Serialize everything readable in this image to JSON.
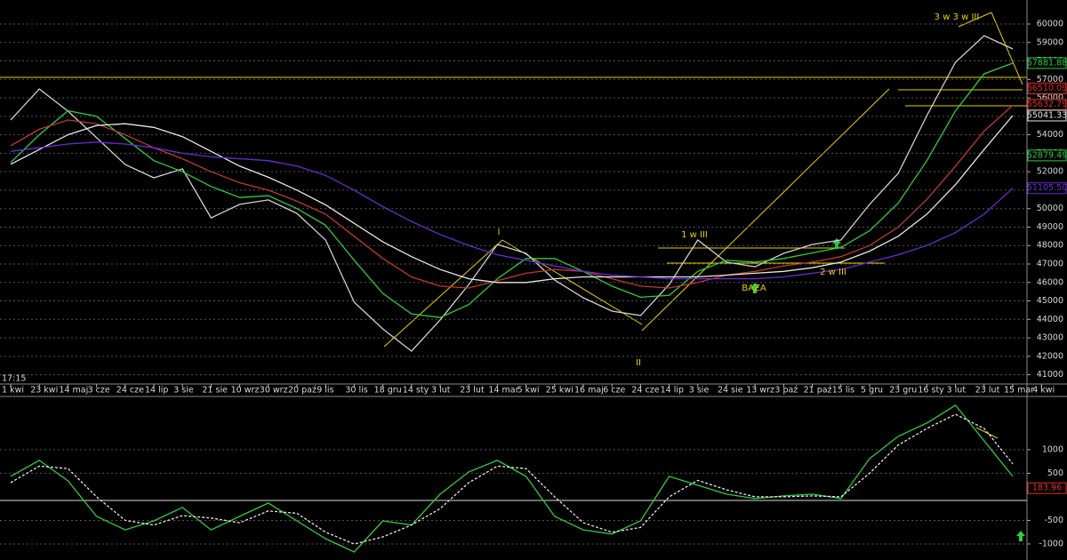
{
  "chart_data": [
    {
      "type": "line",
      "categories": [
        "1 kwi",
        "23 kwi",
        "14 maj",
        "3 cze",
        "24 cze",
        "14 lip",
        "3 sie",
        "21 sie",
        "10 wrz",
        "30 wrz",
        "20 paź",
        "9 lis",
        "30 lis",
        "18 gru",
        "14 sty",
        "3 lut",
        "23 lut",
        "14 mar",
        "5 kwi",
        "25 kwi",
        "16 maj",
        "6 cze",
        "24 cze",
        "14 lip",
        "3 sie",
        "24 sie",
        "13 wrz",
        "3 paź",
        "21 paź",
        "15 lis",
        "5 gru",
        "23 gru",
        "16 sty",
        "3 lut",
        "23 lut",
        "15 mar",
        "4 kwi"
      ],
      "series": [
        {
          "color": "#d0d0d0",
          "values": [
            54800,
            56480,
            55280,
            53840,
            52390,
            51670,
            52150,
            49500,
            50230,
            50470,
            49740,
            48300,
            44930,
            43480,
            42280,
            43970,
            45890,
            48060,
            47580,
            46130,
            45170,
            44450,
            44210,
            45890,
            48300,
            47100,
            46850,
            47580,
            48060,
            48300,
            50230,
            51910,
            55040,
            57930,
            59370,
            58650,
            null
          ]
        },
        {
          "color": "#2ecc40",
          "values": [
            52500,
            54000,
            55300,
            55000,
            53800,
            52600,
            52000,
            51200,
            50600,
            50700,
            50000,
            49100,
            47200,
            45400,
            44300,
            44100,
            44800,
            46200,
            47300,
            47300,
            46600,
            45800,
            45200,
            45300,
            46600,
            47200,
            47100,
            47300,
            47600,
            47900,
            48800,
            50300,
            52600,
            55300,
            57300,
            57880,
            null
          ]
        },
        {
          "color": "#c0392b",
          "values": [
            53400,
            54300,
            54800,
            54600,
            54000,
            53300,
            52700,
            52000,
            51400,
            51000,
            50400,
            49700,
            48500,
            47300,
            46300,
            45800,
            45700,
            46100,
            46500,
            46700,
            46600,
            46200,
            45800,
            45700,
            46000,
            46400,
            46600,
            46900,
            47100,
            47400,
            48000,
            49000,
            50500,
            52300,
            54200,
            55600,
            null
          ]
        },
        {
          "color": "#e6e6e6",
          "values": [
            52400,
            53200,
            54000,
            54500,
            54600,
            54400,
            53900,
            53100,
            52300,
            51700,
            51000,
            50200,
            49200,
            48200,
            47400,
            46700,
            46200,
            46000,
            46000,
            46200,
            46300,
            46300,
            46300,
            46300,
            46300,
            46400,
            46500,
            46600,
            46800,
            47100,
            47700,
            48500,
            49700,
            51300,
            53200,
            55040,
            null
          ]
        },
        {
          "color": "#6a2bd6",
          "values": [
            53100,
            53300,
            53500,
            53600,
            53500,
            53300,
            53000,
            52800,
            52700,
            52600,
            52300,
            51800,
            51000,
            50100,
            49300,
            48600,
            48000,
            47500,
            47200,
            46900,
            46600,
            46400,
            46300,
            46200,
            46200,
            46200,
            46200,
            46300,
            46500,
            46700,
            47100,
            47500,
            48000,
            48700,
            49700,
            51100,
            null
          ]
        }
      ],
      "ylim": [
        40500,
        61300
      ],
      "yticks": [
        60000,
        59000,
        58000,
        57000,
        56000,
        55000,
        54000,
        53000,
        52000,
        51000,
        50000,
        49000,
        48000,
        47000,
        46000,
        45000,
        44000,
        43000,
        42000,
        41000
      ],
      "grid": true,
      "markers": [
        {
          "value": 56510.09,
          "color": "#e03020"
        },
        {
          "value": 57881.88,
          "color": "#2ecc40"
        },
        {
          "value": 55632.79,
          "color": "#e03020"
        },
        {
          "value": 55041.33,
          "color": "#e6e6e6"
        },
        {
          "value": 52879.49,
          "color": "#2ecc40"
        },
        {
          "value": 51105.5,
          "label": "51105.50",
          "color": "#6a2bd6"
        }
      ],
      "annotations": [
        "I",
        "II",
        "1 w III",
        "2 w III",
        "3 w 3 w III",
        "BAZA",
        "17:15"
      ]
    },
    {
      "type": "line",
      "series": [
        {
          "color": "#2ecc40",
          "values": [
            434,
            774,
            340,
            -415,
            -700,
            -510,
            -226,
            -700,
            -415,
            -132,
            -510,
            -887,
            -1170,
            -510,
            -600,
            57,
            528,
            774,
            434,
            -415,
            -700,
            -790,
            -510,
            434,
            245,
            57,
            -38,
            19,
            57,
            -38,
            811,
            1283,
            1566,
            1943,
            1189,
            434,
            null
          ]
        },
        {
          "color": "#e6e6e6",
          "dashed": true,
          "values": [
            300,
            650,
            600,
            0,
            -500,
            -600,
            -400,
            -450,
            -550,
            -300,
            -350,
            -750,
            -1000,
            -850,
            -600,
            -250,
            300,
            650,
            600,
            0,
            -550,
            -750,
            -650,
            0,
            350,
            150,
            0,
            0,
            20,
            0,
            500,
            1100,
            1450,
            1750,
            1450,
            700,
            null
          ]
        }
      ],
      "ylim": [
        -1340,
        2110
      ],
      "yticks": [
        1000,
        500,
        -500,
        -1000
      ],
      "grid": true,
      "markers": [
        {
          "value": 183.96,
          "color": "#e03020"
        }
      ]
    }
  ]
}
